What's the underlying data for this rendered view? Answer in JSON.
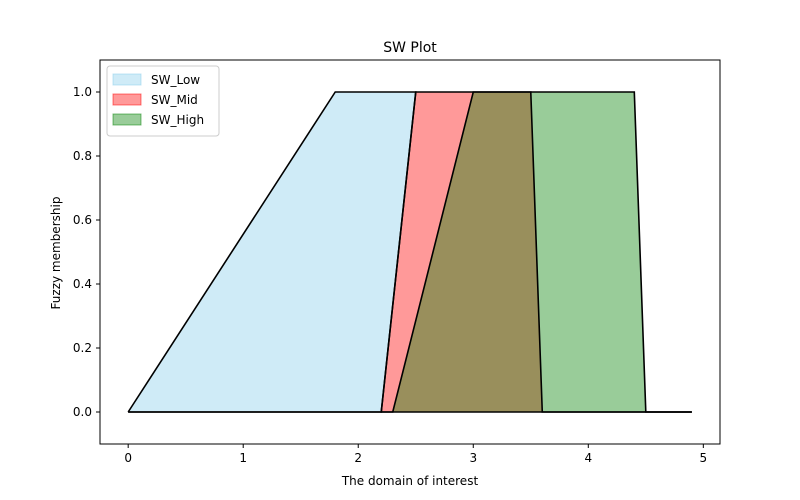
{
  "chart_data": {
    "type": "area",
    "title": "SW Plot",
    "xlabel": "The domain of interest",
    "ylabel": "Fuzzy membership",
    "xlim": [
      -0.245,
      5.145
    ],
    "ylim": [
      -0.1,
      1.1
    ],
    "xticks": [
      0,
      1,
      2,
      3,
      4,
      5
    ],
    "yticks": [
      0.0,
      0.2,
      0.4,
      0.6,
      0.8,
      1.0
    ],
    "xtick_labels": [
      "0",
      "1",
      "2",
      "3",
      "4",
      "5"
    ],
    "ytick_labels": [
      "0.0",
      "0.2",
      "0.4",
      "0.6",
      "0.8",
      "1.0"
    ],
    "grid": false,
    "legend_position": "top-left",
    "series": [
      {
        "name": "SW_Low",
        "fill_color": "#87CEEB",
        "fill_opacity": 0.4,
        "edge_color": "#87CEEB",
        "points": [
          [
            0,
            0
          ],
          [
            1.8,
            1.0
          ],
          [
            2.5,
            1.0
          ],
          [
            2.2,
            0
          ],
          [
            4.9,
            0
          ]
        ]
      },
      {
        "name": "SW_Mid",
        "fill_color": "#FF0000",
        "fill_opacity": 0.4,
        "edge_color": "#FF0000",
        "points": [
          [
            0,
            0
          ],
          [
            2.2,
            0
          ],
          [
            2.5,
            1.0
          ],
          [
            3.5,
            1.0
          ],
          [
            3.6,
            0
          ],
          [
            4.9,
            0
          ]
        ]
      },
      {
        "name": "SW_High",
        "fill_color": "#008000",
        "fill_opacity": 0.4,
        "edge_color": "#008000",
        "points": [
          [
            0,
            0
          ],
          [
            2.3,
            0
          ],
          [
            3.0,
            1.0
          ],
          [
            4.4,
            1.0
          ],
          [
            4.5,
            0
          ],
          [
            4.9,
            0
          ]
        ]
      }
    ]
  }
}
